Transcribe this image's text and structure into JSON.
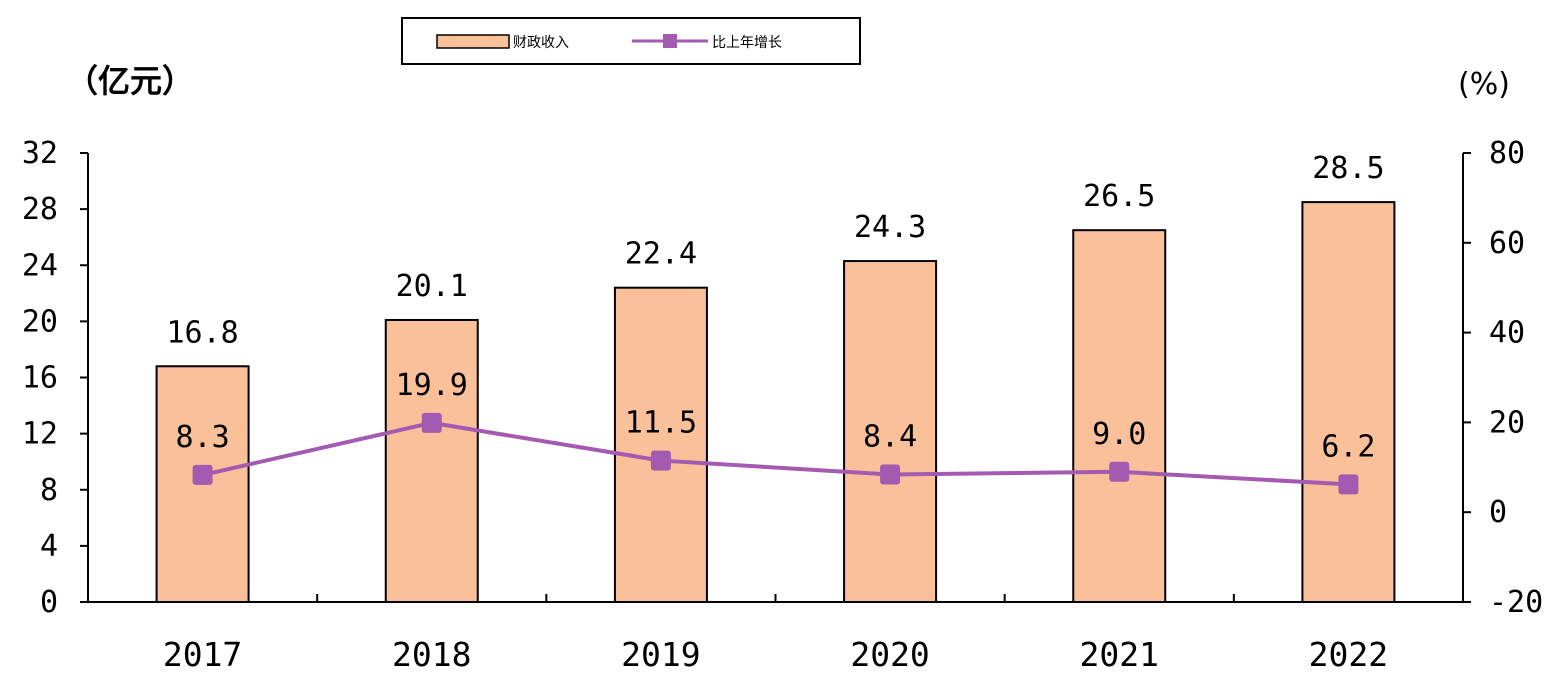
{
  "chart_data": {
    "type": "bar",
    "categories": [
      "2017",
      "2018",
      "2019",
      "2020",
      "2021",
      "2022"
    ],
    "series": [
      {
        "name": "财政收入",
        "type": "bar",
        "axis": "left",
        "values": [
          16.8,
          20.1,
          22.4,
          24.3,
          26.5,
          28.5
        ]
      },
      {
        "name": "比上年增长",
        "type": "line",
        "axis": "right",
        "values": [
          8.3,
          19.9,
          11.5,
          8.4,
          9.0,
          6.2
        ]
      }
    ],
    "bar_labels": [
      "16.8",
      "20.1",
      "22.4",
      "24.3",
      "26.5",
      "28.5"
    ],
    "line_labels": [
      "8.3",
      "19.9",
      "11.5",
      "8.4",
      "9.0",
      "6.2"
    ],
    "left_axis": {
      "unit": "（亿元）",
      "min": 0,
      "max": 32,
      "step": 4,
      "ticks": [
        "0",
        "4",
        "8",
        "12",
        "16",
        "20",
        "24",
        "28",
        "32"
      ]
    },
    "right_axis": {
      "unit": "(%)",
      "min": -20,
      "max": 80,
      "step": 20,
      "ticks": [
        "-20",
        "0",
        "20",
        "40",
        "60",
        "80"
      ]
    },
    "legend": {
      "position": "top-center",
      "items": [
        {
          "label": "财政收入",
          "kind": "bar"
        },
        {
          "label": "比上年增长",
          "kind": "line"
        }
      ]
    },
    "grid": false,
    "colors": {
      "bar_fill": "#f9c099",
      "bar_stroke": "#000000",
      "line": "#a45ab0",
      "marker": "#a45ab0",
      "axis": "#000000"
    }
  }
}
